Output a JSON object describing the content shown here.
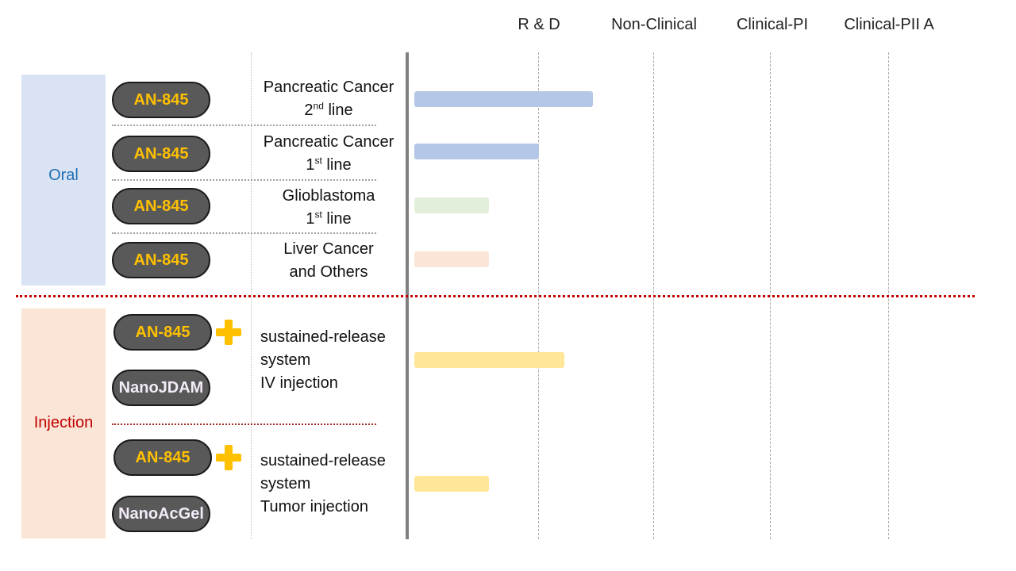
{
  "stages": [
    "R & D",
    "Non-Clinical",
    "Clinical-PI",
    "Clinical-PII A"
  ],
  "groups": {
    "oral": {
      "label": "Oral",
      "color": "#1f6fb4",
      "bg": "#dae3f3"
    },
    "injection": {
      "label": "Injection",
      "color": "#c00000",
      "bg": "#fbe5d6"
    }
  },
  "rows": [
    {
      "drug": "AN-845",
      "indication_line1": "Pancreatic Cancer",
      "indication_line2_num": "2",
      "indication_line2_sup": "nd",
      "indication_line2_rest": " line",
      "progress_stage_fraction": 1.47,
      "bar_color": "#b4c7e7"
    },
    {
      "drug": "AN-845",
      "indication_line1": "Pancreatic Cancer",
      "indication_line2_num": "1",
      "indication_line2_sup": "st",
      "indication_line2_rest": " line",
      "progress_stage_fraction": 1.0,
      "bar_color": "#b4c7e7"
    },
    {
      "drug": "AN-845",
      "indication_line1": "Glioblastoma",
      "indication_line2_num": "1",
      "indication_line2_sup": "st",
      "indication_line2_rest": " line",
      "progress_stage_fraction": 0.6,
      "bar_color": "#e2efda"
    },
    {
      "drug": "AN-845",
      "indication_line1": "Liver Cancer",
      "indication_line2": "and Others",
      "progress_stage_fraction": 0.6,
      "bar_color": "#fbe5d6"
    },
    {
      "drug": "AN-845",
      "partner": "NanoJDAM",
      "indication": [
        "sustained-release",
        "system",
        "IV injection"
      ],
      "progress_stage_fraction": 1.22,
      "bar_color": "#ffe699"
    },
    {
      "drug": "AN-845",
      "partner": "NanoAcGel",
      "indication": [
        "sustained-release",
        "system",
        "Tumor injection"
      ],
      "progress_stage_fraction": 0.6,
      "bar_color": "#ffe699"
    }
  ]
}
